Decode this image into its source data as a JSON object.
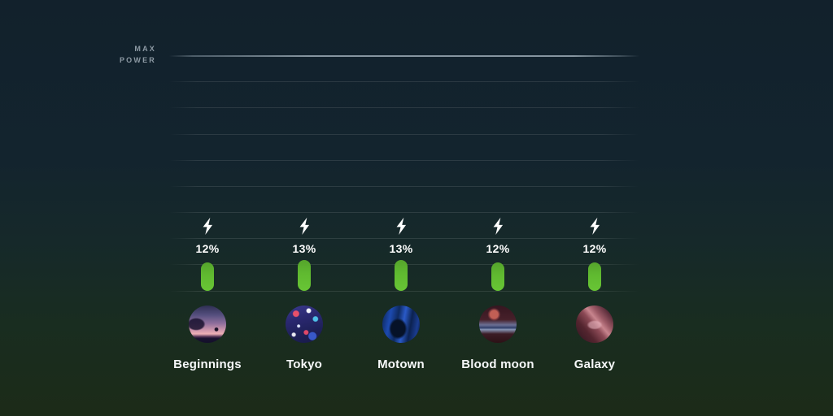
{
  "app": {
    "background_top_color": "#12212c",
    "background_bottom_color": "#1c2b18"
  },
  "chart": {
    "y_axis_label_line1": "MAX",
    "y_axis_label_line2": "POWER",
    "bar_color": "#60ba30",
    "items": [
      {
        "name": "Beginnings",
        "percent": 12,
        "percent_label": "12%",
        "avatar": "beginnings",
        "avatar_icon": "sunset-silhouette-artwork"
      },
      {
        "name": "Tokyo",
        "percent": 13,
        "percent_label": "13%",
        "avatar": "tokyo",
        "avatar_icon": "neon-city-artwork"
      },
      {
        "name": "Motown",
        "percent": 13,
        "percent_label": "13%",
        "avatar": "motown",
        "avatar_icon": "blue-silhouette-artwork"
      },
      {
        "name": "Blood moon",
        "percent": 12,
        "percent_label": "12%",
        "avatar": "blood-moon",
        "avatar_icon": "red-moon-mountains-artwork"
      },
      {
        "name": "Galaxy",
        "percent": 12,
        "percent_label": "12%",
        "avatar": "galaxy",
        "avatar_icon": "milky-way-artwork"
      }
    ]
  },
  "chart_data": {
    "type": "bar",
    "categories": [
      "Beginnings",
      "Tokyo",
      "Motown",
      "Blood moon",
      "Galaxy"
    ],
    "values": [
      12,
      13,
      13,
      12,
      12
    ],
    "unit": "%",
    "title": "",
    "xlabel": "",
    "ylabel": "MAX POWER",
    "ylim": [
      0,
      100
    ],
    "grid": true,
    "gridline_count": 10,
    "legend": false,
    "bar_color": "#60ba30",
    "value_icon": "lightning-bolt",
    "value_labels": [
      "12%",
      "13%",
      "13%",
      "12%",
      "12%"
    ]
  }
}
